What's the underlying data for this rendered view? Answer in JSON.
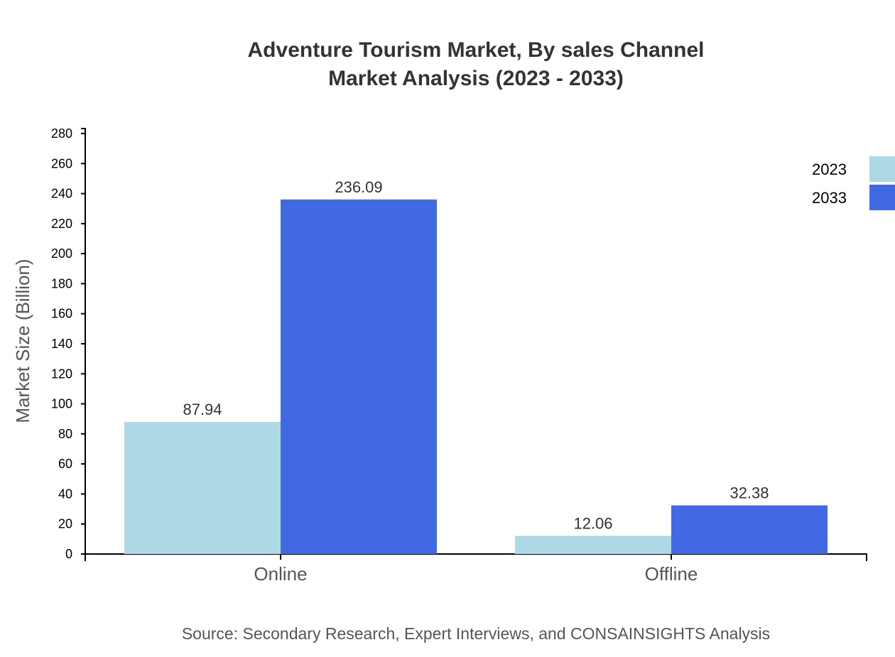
{
  "chart_data": {
    "type": "bar",
    "title": "Adventure Tourism Market, By sales Channel",
    "subtitle": "Market Analysis (2023 - 2033)",
    "xlabel": "",
    "ylabel": "Market Size (Billion)",
    "categories": [
      "Online",
      "Offline"
    ],
    "series": [
      {
        "name": "2023",
        "values": [
          87.94,
          12.06
        ],
        "color": "#add8e6"
      },
      {
        "name": "2033",
        "values": [
          236.09,
          32.38
        ],
        "color": "#4169e1"
      }
    ],
    "ylim": [
      0,
      283.3
    ],
    "yticks": [
      0,
      20,
      40,
      60,
      80,
      100,
      120,
      140,
      160,
      180,
      200,
      220,
      240,
      260,
      280
    ],
    "grid": false,
    "legend": "top-right",
    "source": "Source: Secondary Research, Expert Interviews, and CONSAINSIGHTS Analysis"
  }
}
